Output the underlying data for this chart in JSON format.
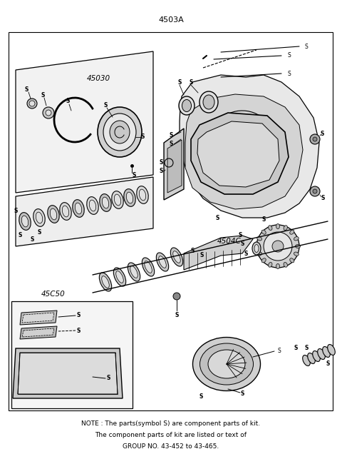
{
  "title": "4503A",
  "bg_color": "#ffffff",
  "line_color": "#000000",
  "text_color": "#000000",
  "fig_width": 4.8,
  "fig_height": 6.57,
  "dpi": 100,
  "note_line1": "NOTE : The parts(symbol S) are component parts of kit.",
  "note_line2": "The component parts of kit are listed or text of",
  "note_line3": "GROUP NO. 43-452 to 43-465.",
  "label_45030": "45030",
  "label_45040": "4504C",
  "label_45050": "45C50"
}
